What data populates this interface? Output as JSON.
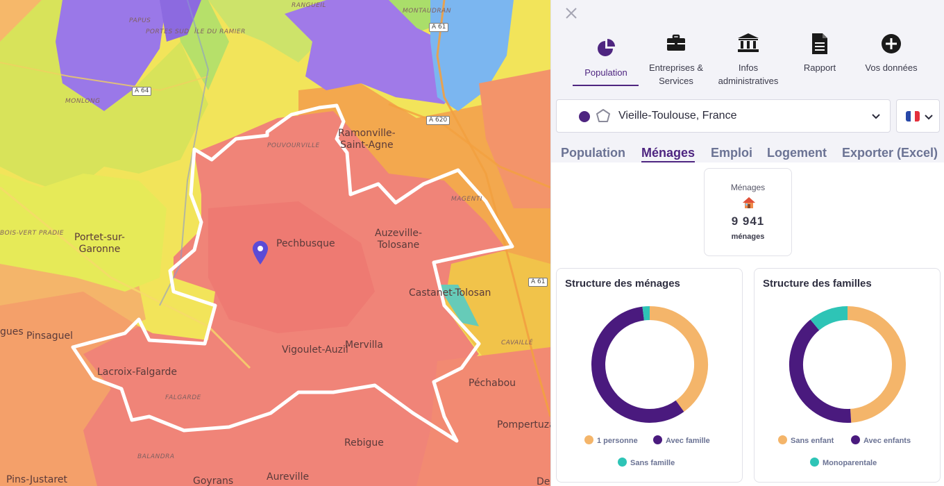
{
  "map": {
    "places": [
      {
        "id": "pechbusque",
        "label": "Pechbusque"
      },
      {
        "id": "ramonville",
        "label": "Ramonville-\nSaint-Agne"
      },
      {
        "id": "auzeville",
        "label": "Auzeville-\nTolosane"
      },
      {
        "id": "castanet",
        "label": "Castanet-Tolosan"
      },
      {
        "id": "portet",
        "label": "Portet-sur-\nGaronne"
      },
      {
        "id": "vigoulet",
        "label": "Vigoulet-Auzil"
      },
      {
        "id": "mervilla",
        "label": "Mervilla"
      },
      {
        "id": "lacroix",
        "label": "Lacroix-Falgarde"
      },
      {
        "id": "pinsaguel",
        "label": "Pinsaguel"
      },
      {
        "id": "pechabou",
        "label": "Péchabou"
      },
      {
        "id": "pompertuzat",
        "label": "Pompertuza"
      },
      {
        "id": "rebigue",
        "label": "Rebigue"
      },
      {
        "id": "pins",
        "label": "Pins-Justaret"
      },
      {
        "id": "goyrans",
        "label": "Goyrans"
      },
      {
        "id": "aureville",
        "label": "Aureville"
      },
      {
        "id": "gues",
        "label": "gues"
      },
      {
        "id": "de",
        "label": "De"
      }
    ],
    "small_places": [
      {
        "id": "papus",
        "label": "PAPUS"
      },
      {
        "id": "portes",
        "label": "PORTES SUD"
      },
      {
        "id": "ramier",
        "label": "ÎLE DU RAMIER"
      },
      {
        "id": "ranguiel",
        "label": "RANGUEIL"
      },
      {
        "id": "montaudran",
        "label": "MONTAUDRAN"
      },
      {
        "id": "monlong",
        "label": "MONLONG"
      },
      {
        "id": "pouvourville",
        "label": "POUVOURVILLE"
      },
      {
        "id": "magenti",
        "label": "MAGENTI"
      },
      {
        "id": "bois",
        "label": "BOIS-VERT PRADIE"
      },
      {
        "id": "cavaille",
        "label": "CAVAILLÉ"
      },
      {
        "id": "falgarde",
        "label": "FALGARDE"
      },
      {
        "id": "balandra",
        "label": "BALANDRA"
      }
    ],
    "roads": [
      {
        "id": "a61a",
        "label": "A 61"
      },
      {
        "id": "a64",
        "label": "A 64"
      },
      {
        "id": "a620",
        "label": "A 620"
      },
      {
        "id": "a61b",
        "label": "A 61"
      }
    ]
  },
  "panel": {
    "close_icon": "close-icon",
    "nav": [
      {
        "label": "Population",
        "icon": "pie-chart-icon",
        "active": true
      },
      {
        "label": "Entreprises &\nServices",
        "icon": "briefcase-icon"
      },
      {
        "label": "Infos\nadministratives",
        "icon": "bank-icon"
      },
      {
        "label": "Rapport",
        "icon": "document-icon"
      },
      {
        "label": "Vos données",
        "icon": "plus-circle-icon"
      }
    ],
    "location": "Vieille-Toulouse, France",
    "language": "FR",
    "tabs": [
      {
        "label": "Population"
      },
      {
        "label": "Ménages",
        "active": true
      },
      {
        "label": "Emploi"
      },
      {
        "label": "Logement"
      },
      {
        "label": "Exporter (Excel)"
      }
    ],
    "kpi": {
      "label": "Ménages",
      "value": "9 941",
      "unit": "ménages",
      "icon": "house-icon"
    },
    "colors": {
      "accent": "#4e2580",
      "orange": "#f4b56a",
      "purple": "#4a1a7e",
      "teal": "#2ec4b6"
    }
  },
  "chart_data": [
    {
      "type": "pie",
      "title": "Structure des ménages",
      "categories": [
        "1 personne",
        "Avec famille",
        "Sans famille"
      ],
      "values": [
        40,
        58,
        2
      ],
      "colors": [
        "#f4b56a",
        "#4a1a7e",
        "#2ec4b6"
      ]
    },
    {
      "type": "pie",
      "title": "Structure des familles",
      "categories": [
        "Sans enfant",
        "Avec enfants",
        "Monoparentale"
      ],
      "values": [
        49,
        40,
        11
      ],
      "colors": [
        "#f4b56a",
        "#4a1a7e",
        "#2ec4b6"
      ]
    }
  ]
}
